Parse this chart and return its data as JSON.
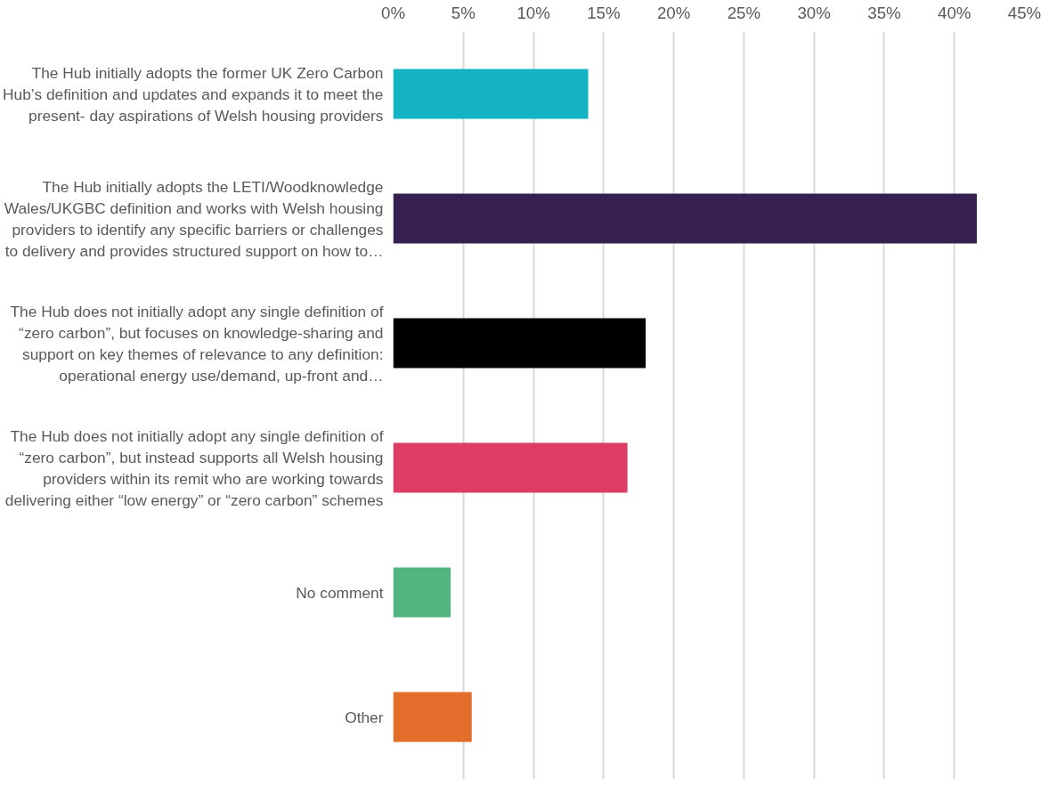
{
  "chart_data": {
    "type": "bar",
    "orientation": "horizontal",
    "categories": [
      "The Hub initially adopts the former UK Zero Carbon\nHub’s definition and updates and expands it to meet the\npresent- day aspirations of Welsh housing providers",
      "The Hub initially adopts the LETI/Woodknowledge\nWales/UKGBC definition and works with Welsh housing\nproviders to identify any specific barriers or challenges\nto delivery and provides structured support on how to…",
      "The Hub does not initially adopt any single definition of\n“zero carbon”, but focuses on knowledge-sharing and\nsupport on key themes of relevance to any definition:\noperational energy use/demand, up-front and…",
      "The Hub does not initially adopt any single definition of\n“zero carbon”, but instead supports all Welsh housing\nproviders within its remit who are working towards\ndelivering either “low energy” or “zero carbon” schemes",
      "No comment",
      "Other"
    ],
    "values": [
      13.9,
      41.6,
      18.0,
      16.7,
      4.1,
      5.6
    ],
    "colors": [
      "#13b3c4",
      "#35204f",
      "#000000",
      "#dd3c65",
      "#52b480",
      "#e36d2a"
    ],
    "xlim": [
      0,
      45
    ],
    "xticks": [
      {
        "value": 0,
        "label": "0%"
      },
      {
        "value": 5,
        "label": "5%"
      },
      {
        "value": 10,
        "label": "10%"
      },
      {
        "value": 15,
        "label": "15%"
      },
      {
        "value": 20,
        "label": "20%"
      },
      {
        "value": 25,
        "label": "25%"
      },
      {
        "value": 30,
        "label": "30%"
      },
      {
        "value": 35,
        "label": "35%"
      },
      {
        "value": 40,
        "label": "40%"
      },
      {
        "value": 45,
        "label": "45%"
      }
    ],
    "grid": "x"
  }
}
